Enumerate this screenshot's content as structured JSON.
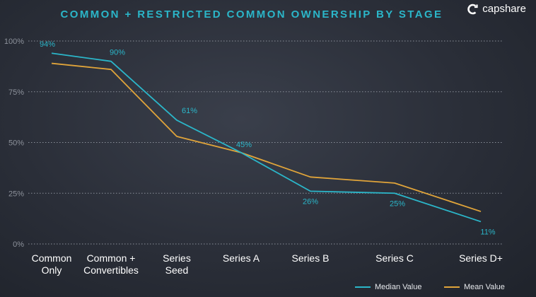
{
  "brand": {
    "name": "capshare",
    "icon": "capshare-logo-icon"
  },
  "chart_data": {
    "type": "line",
    "title": "COMMON + RESTRICTED COMMON OWNERSHIP BY STAGE",
    "categories": [
      [
        "Common",
        "Only"
      ],
      [
        "Common +",
        "Convertibles"
      ],
      [
        "Series",
        "Seed"
      ],
      [
        "Series A"
      ],
      [
        "Series B"
      ],
      [
        "Series C"
      ],
      [
        "Series D+"
      ]
    ],
    "ylim": [
      0,
      100
    ],
    "yticks": [
      0,
      25,
      50,
      75,
      100
    ],
    "ytick_labels": [
      "0%",
      "25%",
      "50%",
      "75%",
      "100%"
    ],
    "grid": true,
    "legend_position": "bottom-right",
    "series": [
      {
        "name": "Median Value",
        "color": "#2bb6c9",
        "values": [
          94,
          90,
          61,
          45,
          26,
          25,
          11
        ],
        "data_labels": [
          "94%",
          "90%",
          "61%",
          "45%",
          "26%",
          "25%",
          "11%"
        ]
      },
      {
        "name": "Mean Value",
        "color": "#e0a43a",
        "values": [
          89,
          86,
          53,
          45,
          33,
          30,
          16
        ]
      }
    ]
  }
}
